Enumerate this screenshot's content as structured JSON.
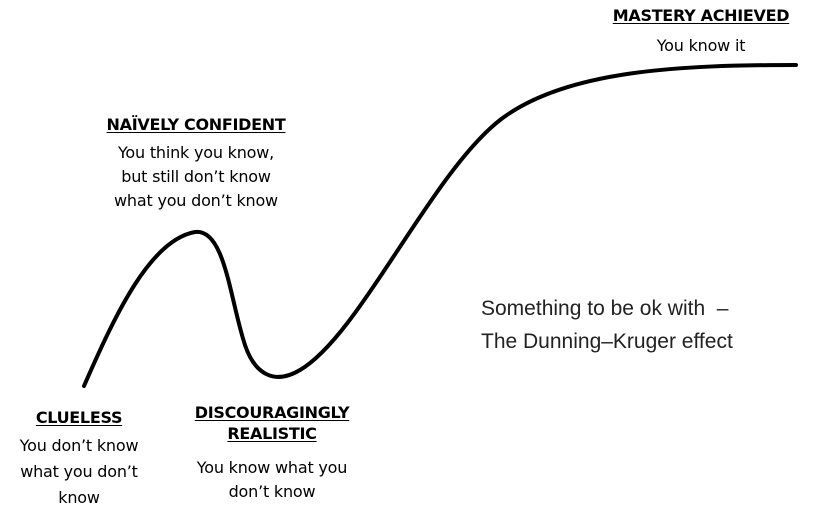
{
  "stages": [
    {
      "title": "MASTERY ACHIEVED",
      "lines": [
        "You know it"
      ]
    },
    {
      "title": "NAÏVELY CONFIDENT",
      "lines": [
        "You think you know,",
        "but still don’t know",
        "what you don’t know"
      ]
    },
    {
      "title": "CLUELESS",
      "lines": [
        "You don’t know",
        "what you don’t",
        "know"
      ]
    },
    {
      "title_lines": [
        "DISCOURAGINGLY",
        "REALISTIC"
      ],
      "lines": [
        "You know what you",
        "don’t know"
      ]
    }
  ],
  "caption": {
    "line1": "Something to be ok with  –",
    "line2": "The Dunning–Kruger effect"
  },
  "colors": {
    "curve": "#000000",
    "text": "#000000",
    "caption": "#222222"
  }
}
